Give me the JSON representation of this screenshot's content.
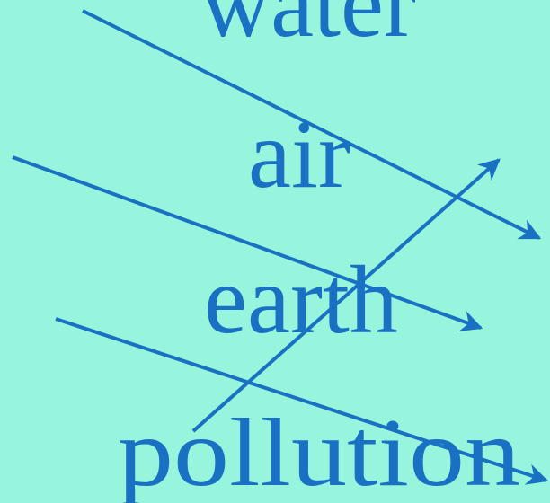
{
  "words": [
    "water",
    "air",
    "earth",
    "pollution"
  ]
}
